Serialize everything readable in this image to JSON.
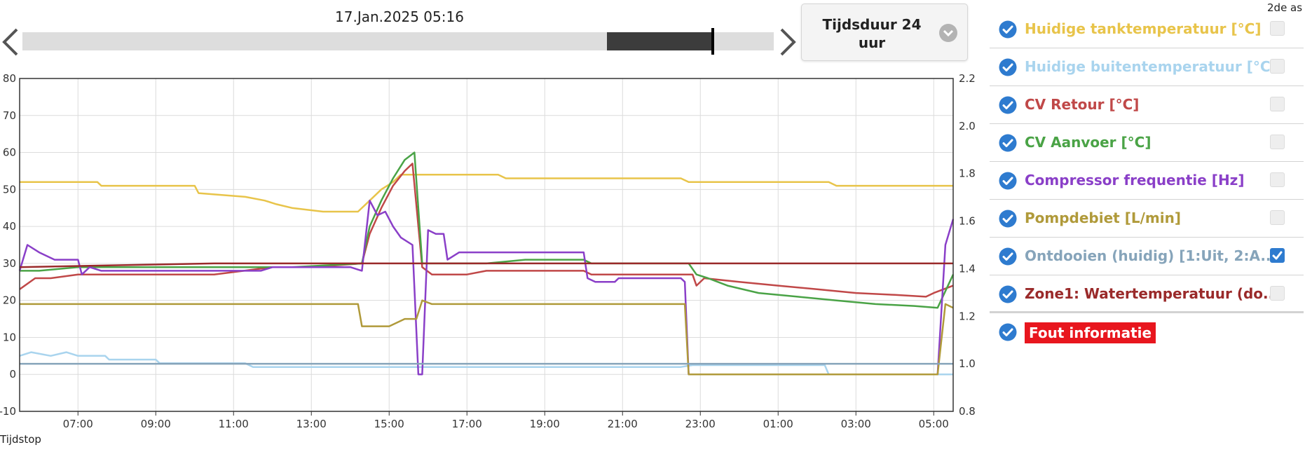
{
  "timeline": {
    "current_time": "17.Jan.2025 05:16",
    "prev_icon": "chevron-left-icon",
    "next_icon": "chevron-right-icon"
  },
  "duration": {
    "label": "Tijdsduur 24 uur",
    "icon": "chevron-down-circle-icon"
  },
  "legend": {
    "second_axis_header": "2de as",
    "items": [
      {
        "label": "Huidige tanktemperatuur [°C]",
        "color": "#e8c44a",
        "checked": true,
        "second_axis": false
      },
      {
        "label": "Huidige buitentemperatuur [°C]",
        "color": "#a9d4ee",
        "checked": true,
        "second_axis": false
      },
      {
        "label": "CV Retour [°C]",
        "color": "#c04848",
        "checked": true,
        "second_axis": false
      },
      {
        "label": "CV Aanvoer [°C]",
        "color": "#4aa346",
        "checked": true,
        "second_axis": false
      },
      {
        "label": "Compressor frequentie [Hz]",
        "color": "#8a3fc8",
        "checked": true,
        "second_axis": false
      },
      {
        "label": "Pompdebiet [L/min]",
        "color": "#b09a3a",
        "checked": true,
        "second_axis": false
      },
      {
        "label": "Ontdooien (huidig) [1:Uit, 2:A...",
        "color": "#86a4ba",
        "checked": true,
        "second_axis": true
      },
      {
        "label": "Zone1: Watertemperatuur (do...",
        "color": "#9a2a2a",
        "checked": true,
        "second_axis": false
      },
      {
        "label": "Fout informatie",
        "color": "#e8161e",
        "checked": true,
        "second_axis": null
      }
    ]
  },
  "footer": "Tijdstop",
  "chart_data": {
    "type": "line",
    "x_unit": "hours since 05:30 (16 Jan) — display ticks as clock times",
    "x_range": [
      0,
      24
    ],
    "x_ticks": [
      {
        "x": 1.5,
        "label": "07:00"
      },
      {
        "x": 3.5,
        "label": "09:00"
      },
      {
        "x": 5.5,
        "label": "11:00"
      },
      {
        "x": 7.5,
        "label": "13:00"
      },
      {
        "x": 9.5,
        "label": "15:00"
      },
      {
        "x": 11.5,
        "label": "17:00"
      },
      {
        "x": 13.5,
        "label": "19:00"
      },
      {
        "x": 15.5,
        "label": "21:00"
      },
      {
        "x": 17.5,
        "label": "23:00"
      },
      {
        "x": 19.5,
        "label": "01:00"
      },
      {
        "x": 21.5,
        "label": "03:00"
      },
      {
        "x": 23.5,
        "label": "05:00"
      }
    ],
    "y_left": {
      "min": -10,
      "max": 80,
      "ticks": [
        "-10",
        "0",
        "10",
        "20",
        "30",
        "40",
        "50",
        "60",
        "70",
        "80"
      ]
    },
    "y_right": {
      "min": 0.8,
      "max": 2.2,
      "ticks": [
        "0.8",
        "1.0",
        "1.2",
        "1.4",
        "1.6",
        "1.8",
        "2.0",
        "2.2"
      ]
    },
    "grid": true,
    "series": [
      {
        "name": "Huidige tanktemperatuur [°C]",
        "color": "#e8c44a",
        "axis": "left",
        "points": [
          [
            0,
            52
          ],
          [
            2,
            52
          ],
          [
            2.1,
            51
          ],
          [
            4.5,
            51
          ],
          [
            4.6,
            49
          ],
          [
            5.8,
            48
          ],
          [
            6.3,
            47
          ],
          [
            6.6,
            46
          ],
          [
            7,
            45
          ],
          [
            7.8,
            44
          ],
          [
            8.7,
            44
          ],
          [
            9,
            47
          ],
          [
            9.3,
            50
          ],
          [
            9.6,
            52
          ],
          [
            9.8,
            54
          ],
          [
            12.3,
            54
          ],
          [
            12.5,
            53
          ],
          [
            17,
            53
          ],
          [
            17.2,
            52
          ],
          [
            20.8,
            52
          ],
          [
            21,
            51
          ],
          [
            24,
            51
          ]
        ]
      },
      {
        "name": "Huidige buitentemperatuur [°C]",
        "color": "#a9d4ee",
        "axis": "left",
        "points": [
          [
            0,
            5
          ],
          [
            0.3,
            6
          ],
          [
            0.8,
            5
          ],
          [
            1.2,
            6
          ],
          [
            1.5,
            5
          ],
          [
            2.2,
            5
          ],
          [
            2.3,
            4
          ],
          [
            3.5,
            4
          ],
          [
            3.6,
            3
          ],
          [
            5.8,
            3
          ],
          [
            6,
            2
          ],
          [
            17,
            2
          ],
          [
            17.3,
            2.5
          ],
          [
            20.7,
            2.5
          ],
          [
            20.8,
            0
          ],
          [
            24,
            0
          ]
        ]
      },
      {
        "name": "CV Retour [°C]",
        "color": "#c04848",
        "axis": "left",
        "points": [
          [
            0,
            23
          ],
          [
            0.4,
            26
          ],
          [
            0.8,
            26
          ],
          [
            1.5,
            27
          ],
          [
            2.5,
            27
          ],
          [
            3.5,
            27
          ],
          [
            5,
            27
          ],
          [
            6.5,
            29
          ],
          [
            7.5,
            29
          ],
          [
            8.8,
            30
          ],
          [
            9,
            38
          ],
          [
            9.3,
            45
          ],
          [
            9.6,
            51
          ],
          [
            9.9,
            55
          ],
          [
            10.1,
            57
          ],
          [
            10.35,
            29
          ],
          [
            10.6,
            27
          ],
          [
            11.5,
            27
          ],
          [
            12,
            28
          ],
          [
            14.5,
            28
          ],
          [
            14.7,
            27
          ],
          [
            17.3,
            27
          ],
          [
            17.4,
            24
          ],
          [
            17.6,
            26
          ],
          [
            18.5,
            25
          ],
          [
            19.5,
            24
          ],
          [
            20.5,
            23
          ],
          [
            21.5,
            22
          ],
          [
            22.5,
            21.5
          ],
          [
            23.3,
            21
          ],
          [
            23.5,
            22
          ],
          [
            24,
            24
          ]
        ]
      },
      {
        "name": "CV Aanvoer [°C]",
        "color": "#4aa346",
        "axis": "left",
        "points": [
          [
            0,
            28
          ],
          [
            0.5,
            28
          ],
          [
            1.5,
            29
          ],
          [
            3,
            29
          ],
          [
            5,
            29
          ],
          [
            7,
            29
          ],
          [
            8.8,
            30
          ],
          [
            9,
            40
          ],
          [
            9.3,
            47
          ],
          [
            9.6,
            53
          ],
          [
            9.9,
            58
          ],
          [
            10.15,
            60
          ],
          [
            10.35,
            30
          ],
          [
            10.5,
            30
          ],
          [
            10.7,
            30
          ],
          [
            12,
            30
          ],
          [
            13,
            31
          ],
          [
            14.5,
            31
          ],
          [
            14.7,
            30
          ],
          [
            17.2,
            30
          ],
          [
            17.4,
            27
          ],
          [
            17.7,
            26
          ],
          [
            18.2,
            24
          ],
          [
            19,
            22
          ],
          [
            20,
            21
          ],
          [
            21,
            20
          ],
          [
            22,
            19
          ],
          [
            23,
            18.5
          ],
          [
            23.6,
            18
          ],
          [
            24,
            27
          ]
        ]
      },
      {
        "name": "Compressor frequentie [Hz]",
        "color": "#8a3fc8",
        "axis": "left",
        "points": [
          [
            0,
            28
          ],
          [
            0.2,
            35
          ],
          [
            0.5,
            33
          ],
          [
            0.9,
            31
          ],
          [
            1.5,
            31
          ],
          [
            1.6,
            27
          ],
          [
            1.8,
            29
          ],
          [
            2.1,
            28
          ],
          [
            2.6,
            28
          ],
          [
            3.5,
            28
          ],
          [
            5.5,
            28
          ],
          [
            6.2,
            28
          ],
          [
            6.5,
            29
          ],
          [
            7.5,
            29
          ],
          [
            8.5,
            29
          ],
          [
            8.8,
            28
          ],
          [
            9,
            47
          ],
          [
            9.2,
            43
          ],
          [
            9.4,
            44
          ],
          [
            9.6,
            40
          ],
          [
            9.8,
            37
          ],
          [
            10.1,
            35
          ],
          [
            10.25,
            0
          ],
          [
            10.35,
            0
          ],
          [
            10.5,
            39
          ],
          [
            10.7,
            38
          ],
          [
            10.9,
            38
          ],
          [
            11,
            31
          ],
          [
            11.3,
            33
          ],
          [
            12,
            33
          ],
          [
            13,
            33
          ],
          [
            14,
            33
          ],
          [
            14.5,
            33
          ],
          [
            14.6,
            26
          ],
          [
            14.8,
            25
          ],
          [
            15.3,
            25
          ],
          [
            15.4,
            26
          ],
          [
            17,
            26
          ],
          [
            17.1,
            25
          ],
          [
            17.2,
            0
          ],
          [
            23.6,
            0
          ],
          [
            23.8,
            35
          ],
          [
            24,
            42
          ]
        ]
      },
      {
        "name": "Pompdebiet [L/min]",
        "color": "#b09a3a",
        "axis": "left",
        "points": [
          [
            0,
            19
          ],
          [
            1,
            19
          ],
          [
            2,
            19
          ],
          [
            3,
            19
          ],
          [
            4,
            19
          ],
          [
            5,
            19
          ],
          [
            6,
            19
          ],
          [
            7,
            19
          ],
          [
            8.7,
            19
          ],
          [
            8.8,
            13
          ],
          [
            9.5,
            13
          ],
          [
            9.9,
            15
          ],
          [
            10.2,
            15
          ],
          [
            10.35,
            20
          ],
          [
            10.6,
            19
          ],
          [
            12,
            19
          ],
          [
            14,
            19
          ],
          [
            16,
            19
          ],
          [
            17.1,
            19
          ],
          [
            17.2,
            0
          ],
          [
            23.6,
            0
          ],
          [
            23.8,
            19
          ],
          [
            24,
            18
          ]
        ]
      },
      {
        "name": "Ontdooien (huidig) [1:Uit, 2:A...",
        "color": "#86a4ba",
        "axis": "right",
        "points": [
          [
            0,
            1.0
          ],
          [
            24,
            1.0
          ]
        ]
      },
      {
        "name": "Zone1: Watertemperatuur (do...",
        "color": "#9a2a2a",
        "axis": "left",
        "points": [
          [
            0,
            29
          ],
          [
            2.5,
            29.5
          ],
          [
            5,
            30
          ],
          [
            24,
            30
          ]
        ]
      }
    ]
  }
}
